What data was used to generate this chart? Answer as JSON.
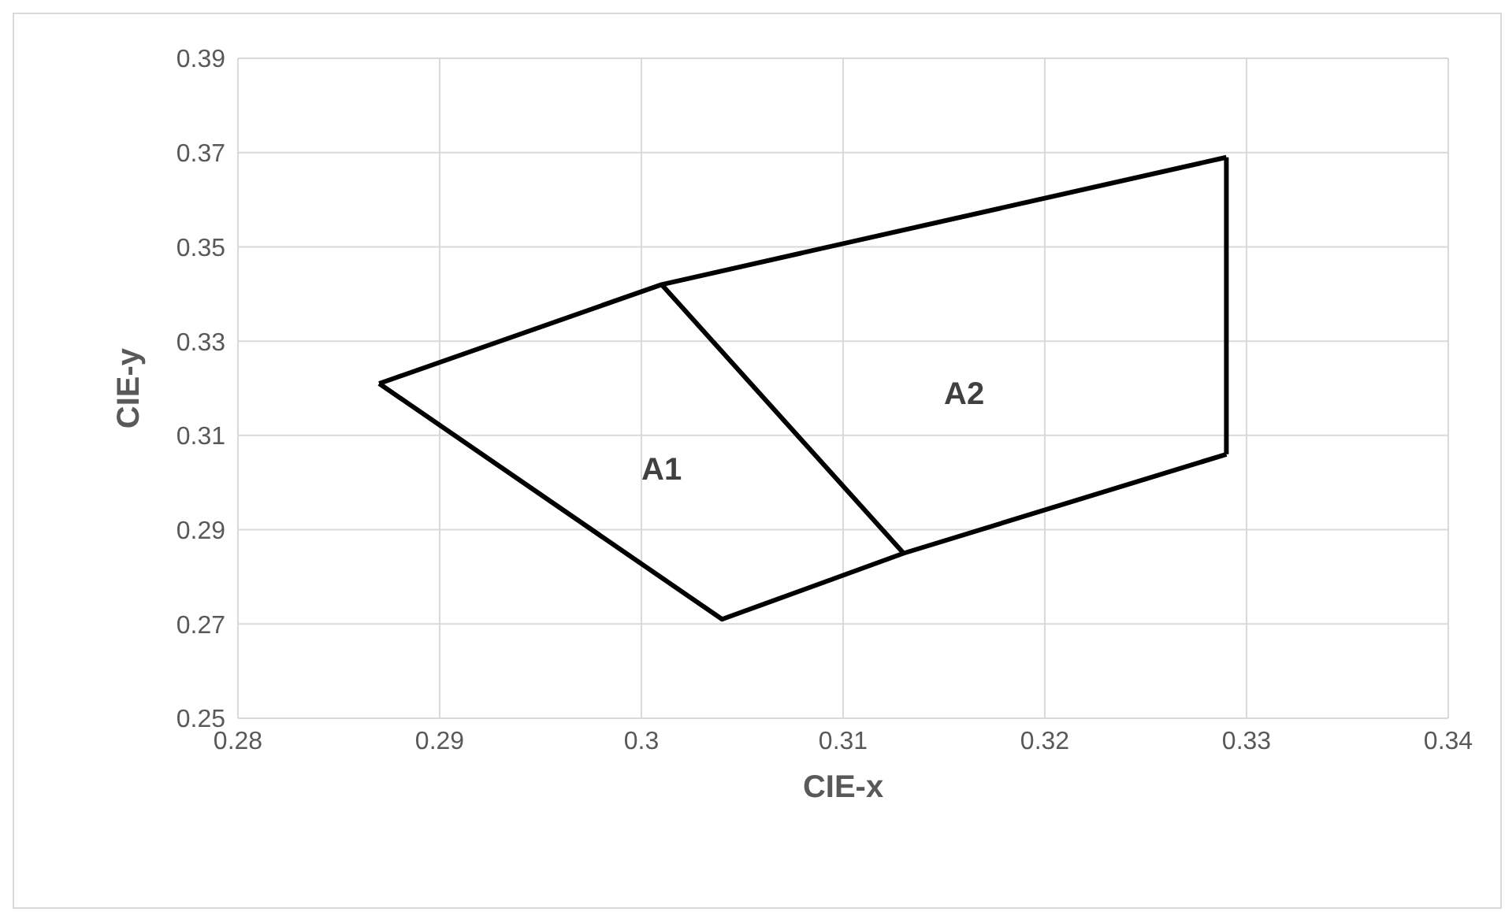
{
  "chart_data": {
    "type": "line",
    "xlabel": "CIE-x",
    "ylabel": "CIE-y",
    "xlim": [
      0.28,
      0.34
    ],
    "xticks": [
      0.28,
      0.29,
      0.3,
      0.31,
      0.32,
      0.33,
      0.34
    ],
    "ylim": [
      0.25,
      0.39
    ],
    "yticks": [
      0.25,
      0.27,
      0.29,
      0.31,
      0.33,
      0.35,
      0.37,
      0.39
    ],
    "grid": true,
    "marker": "none",
    "line_style": "solid",
    "series": [
      {
        "color": "#000000",
        "x": [
          0.287,
          0.301,
          0.329
        ],
        "values": [
          0.321,
          0.342,
          0.369
        ]
      },
      {
        "color": "#000000",
        "x": [
          0.287,
          0.304,
          0.313,
          0.329
        ],
        "values": [
          0.321,
          0.271,
          0.285,
          0.306
        ]
      },
      {
        "color": "#000000",
        "x": [
          0.329,
          0.329
        ],
        "values": [
          0.306,
          0.369
        ]
      },
      {
        "color": "#000000",
        "x": [
          0.301,
          0.313
        ],
        "values": [
          0.342,
          0.285
        ]
      }
    ],
    "annotations": [
      "A1",
      "A2"
    ]
  }
}
